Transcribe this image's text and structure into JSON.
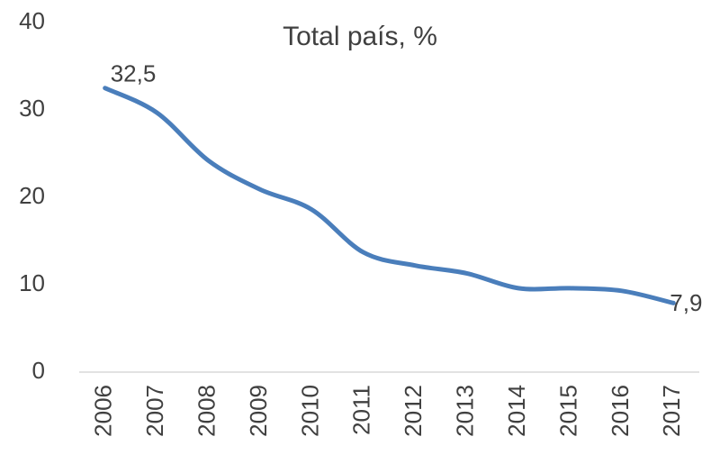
{
  "chart_data": {
    "type": "line",
    "title": "Total país, %",
    "categories": [
      "2006",
      "2007",
      "2008",
      "2009",
      "2010",
      "2011",
      "2012",
      "2013",
      "2014",
      "2015",
      "2016",
      "2017"
    ],
    "series": [
      {
        "name": "Total país",
        "color": "#4a7ebb",
        "values": [
          32.5,
          29.7,
          24.2,
          20.9,
          18.6,
          13.7,
          12.2,
          11.3,
          9.6,
          9.6,
          9.3,
          7.9
        ],
        "value_labels": [
          "32,5",
          null,
          null,
          null,
          null,
          null,
          null,
          null,
          null,
          null,
          null,
          "7,9"
        ]
      }
    ],
    "ylim": [
      0,
      40
    ],
    "yticks": [
      0,
      10,
      20,
      30,
      40
    ],
    "grid": false
  }
}
